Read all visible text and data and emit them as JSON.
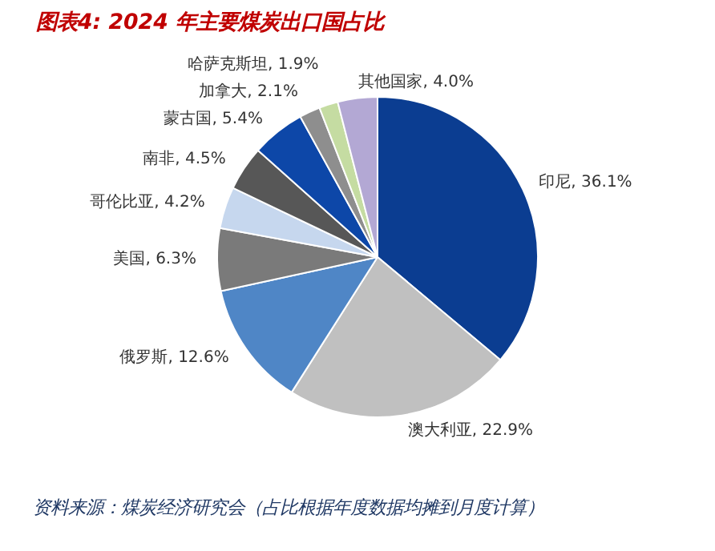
{
  "chart_data": {
    "type": "pie",
    "title": "图表4:  2024 年主要煤炭出口国占比",
    "categories": [
      "印尼",
      "澳大利亚",
      "俄罗斯",
      "美国",
      "哥伦比亚",
      "南非",
      "蒙古国",
      "加拿大",
      "哈萨克斯坦",
      "其他国家"
    ],
    "values": [
      36.1,
      22.9,
      12.6,
      6.3,
      4.2,
      4.5,
      5.4,
      2.1,
      1.9,
      4.0
    ],
    "colors": [
      "#0b3d91",
      "#c0c0c0",
      "#4f86c6",
      "#7a7a7a",
      "#c6d7ee",
      "#575757",
      "#0d47a8",
      "#8e8e8e",
      "#c5dca2",
      "#b3a8d4"
    ],
    "value_labels": [
      ", 36.1%",
      ", 22.9%",
      ", 12.6%",
      ", 6.3%",
      ", 4.2%",
      ", 4.5%",
      ", 5.4%",
      ", 2.1%",
      ", 1.9%",
      ", 4.0%"
    ],
    "annotations": [
      "资料来源：煤炭经济研究会（占比根据年度数据均摊到月度计算）"
    ]
  }
}
